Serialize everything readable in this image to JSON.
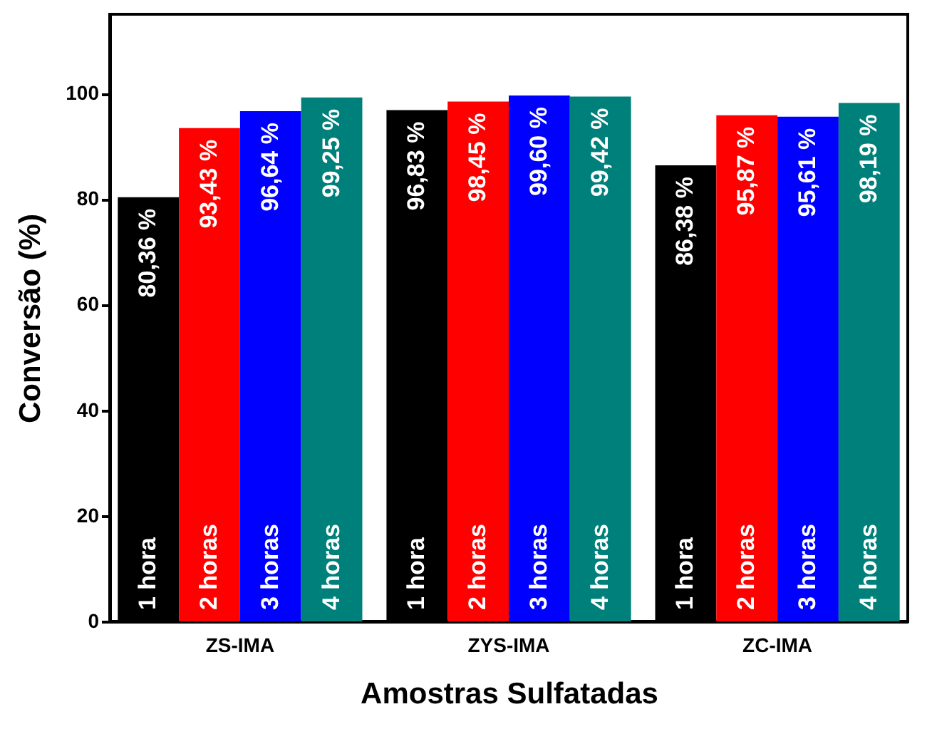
{
  "chart_data": {
    "type": "bar",
    "xlabel": "Amostras Sulfatadas",
    "ylabel": "Conversão (%)",
    "categories": [
      "ZS-IMA",
      "ZYS-IMA",
      "ZC-IMA"
    ],
    "series": [
      {
        "name": "1 hora",
        "color": "#000000",
        "values": [
          80.36,
          96.83,
          86.38
        ],
        "value_labels": [
          "80,36 %",
          "96,83 %",
          "86,38 %"
        ]
      },
      {
        "name": "2 horas",
        "color": "#ff0000",
        "values": [
          93.43,
          98.45,
          95.87
        ],
        "value_labels": [
          "93,43 %",
          "98,45 %",
          "95,87 %"
        ]
      },
      {
        "name": "3 horas",
        "color": "#0000ff",
        "values": [
          96.64,
          99.6,
          95.61
        ],
        "value_labels": [
          "96,64 %",
          "99,60 %",
          "95,61 %"
        ]
      },
      {
        "name": "4 horas",
        "color": "#00807a",
        "values": [
          99.25,
          99.42,
          98.19
        ],
        "value_labels": [
          "99,25 %",
          "99,42 %",
          "98,19 %"
        ]
      }
    ],
    "ylim": [
      0,
      115
    ],
    "yticks": [
      0,
      20,
      40,
      60,
      80,
      100
    ],
    "grid": false,
    "legend": false
  }
}
